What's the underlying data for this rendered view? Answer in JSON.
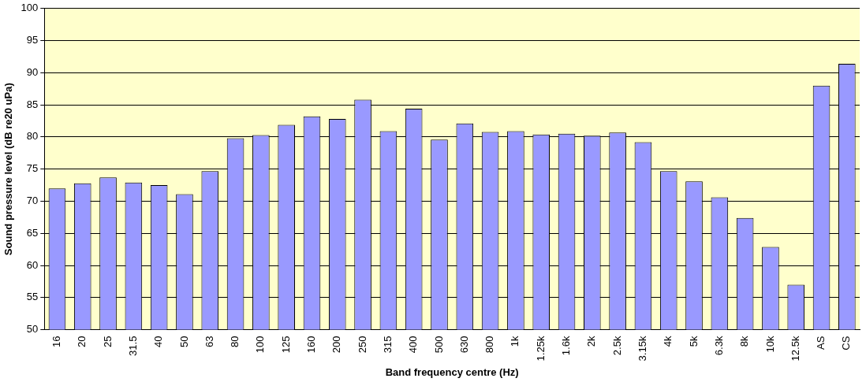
{
  "chart_data": {
    "type": "bar",
    "xlabel": "Band frequency centre (Hz)",
    "ylabel": "Sound pressure level (dB re20 uPa)",
    "categories": [
      "16",
      "20",
      "25",
      "31.5",
      "40",
      "50",
      "63",
      "80",
      "100",
      "125",
      "160",
      "200",
      "250",
      "315",
      "400",
      "500",
      "630",
      "800",
      "1k",
      "1.25k",
      "1.6k",
      "2k",
      "2.5k",
      "3.15k",
      "4k",
      "5k",
      "6.3k",
      "8k",
      "10k",
      "12.5k",
      "AS",
      "CS"
    ],
    "values": [
      72.0,
      72.8,
      73.7,
      72.9,
      72.5,
      71.1,
      74.7,
      79.8,
      80.3,
      81.9,
      83.2,
      82.8,
      85.8,
      80.9,
      84.4,
      79.6,
      82.1,
      80.8,
      80.9,
      80.4,
      80.5,
      80.2,
      80.7,
      79.2,
      74.7,
      73.1,
      70.6,
      67.4,
      62.9,
      57.0,
      88.0,
      91.4
    ],
    "color": "#9999ff",
    "ylim": [
      50,
      100
    ],
    "yticks": [
      50,
      55,
      60,
      65,
      70,
      75,
      80,
      85,
      90,
      95,
      100
    ],
    "grid": "y",
    "legend": false
  }
}
